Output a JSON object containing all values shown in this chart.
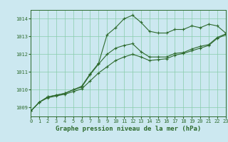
{
  "bg_color": "#cce8f0",
  "grid_color": "#88ccaa",
  "line_color": "#2d6a2d",
  "title": "Graphe pression niveau de la mer (hPa)",
  "xlim": [
    0,
    23
  ],
  "ylim": [
    1008.5,
    1014.5
  ],
  "yticks": [
    1009,
    1010,
    1011,
    1012,
    1013,
    1014
  ],
  "xticks": [
    0,
    1,
    2,
    3,
    4,
    5,
    6,
    7,
    8,
    9,
    10,
    11,
    12,
    13,
    14,
    15,
    16,
    17,
    18,
    19,
    20,
    21,
    22,
    23
  ],
  "line1_x": [
    0,
    1,
    2,
    3,
    4,
    5,
    6,
    7,
    8,
    9,
    10,
    11,
    12,
    13,
    14,
    15,
    16,
    17,
    18,
    19,
    20,
    21,
    22,
    23
  ],
  "line1_y": [
    1008.8,
    1009.3,
    1009.6,
    1009.7,
    1009.8,
    1010.0,
    1010.2,
    1010.9,
    1011.5,
    1013.1,
    1013.5,
    1014.0,
    1014.2,
    1013.8,
    1013.3,
    1013.2,
    1013.2,
    1013.4,
    1013.4,
    1013.6,
    1013.5,
    1013.7,
    1013.6,
    1013.2
  ],
  "line2_x": [
    0,
    1,
    2,
    3,
    4,
    5,
    6,
    7,
    8,
    9,
    10,
    11,
    12,
    13,
    14,
    15,
    16,
    17,
    18,
    19,
    20,
    21,
    22,
    23
  ],
  "line2_y": [
    1008.8,
    1009.3,
    1009.6,
    1009.7,
    1009.8,
    1010.0,
    1010.15,
    1010.85,
    1011.45,
    1012.0,
    1012.35,
    1012.5,
    1012.6,
    1012.15,
    1011.85,
    1011.85,
    1011.85,
    1012.05,
    1012.1,
    1012.3,
    1012.45,
    1012.55,
    1012.95,
    1013.15
  ],
  "line3_x": [
    0,
    1,
    2,
    3,
    4,
    5,
    6,
    7,
    8,
    9,
    10,
    11,
    12,
    13,
    14,
    15,
    16,
    17,
    18,
    19,
    20,
    21,
    22,
    23
  ],
  "line3_y": [
    1008.8,
    1009.3,
    1009.55,
    1009.65,
    1009.75,
    1009.9,
    1010.05,
    1010.5,
    1010.95,
    1011.3,
    1011.65,
    1011.85,
    1012.0,
    1011.85,
    1011.65,
    1011.7,
    1011.75,
    1011.95,
    1012.05,
    1012.2,
    1012.35,
    1012.5,
    1012.9,
    1013.1
  ],
  "title_fontsize": 6.5,
  "tick_fontsize": 5.0
}
